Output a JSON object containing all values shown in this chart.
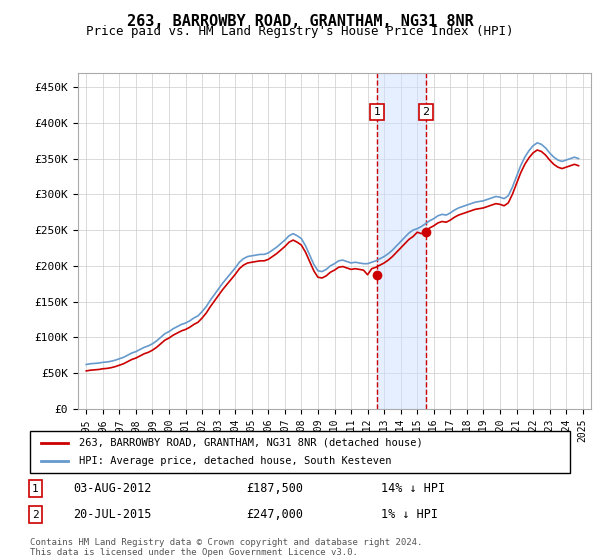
{
  "title": "263, BARROWBY ROAD, GRANTHAM, NG31 8NR",
  "subtitle": "Price paid vs. HM Land Registry's House Price Index (HPI)",
  "ylabel_ticks": [
    "£0",
    "£50K",
    "£100K",
    "£150K",
    "£200K",
    "£250K",
    "£300K",
    "£350K",
    "£400K",
    "£450K"
  ],
  "ylabel_values": [
    0,
    50000,
    100000,
    150000,
    200000,
    250000,
    300000,
    350000,
    400000,
    450000
  ],
  "ylim": [
    0,
    470000
  ],
  "xlim_start": 1994.5,
  "xlim_end": 2025.5,
  "xticks": [
    1995,
    1996,
    1997,
    1998,
    1999,
    2000,
    2001,
    2002,
    2003,
    2004,
    2005,
    2006,
    2007,
    2008,
    2009,
    2010,
    2011,
    2012,
    2013,
    2014,
    2015,
    2016,
    2017,
    2018,
    2019,
    2020,
    2021,
    2022,
    2023,
    2024,
    2025
  ],
  "hpi_color": "#6699cc",
  "price_color": "#cc0000",
  "background_color": "#ffffff",
  "grid_color": "#cccccc",
  "legend_label_red": "263, BARROWBY ROAD, GRANTHAM, NG31 8NR (detached house)",
  "legend_label_blue": "HPI: Average price, detached house, South Kesteven",
  "transaction1_date": "03-AUG-2012",
  "transaction1_price": "£187,500",
  "transaction1_hpi": "14% ↓ HPI",
  "transaction2_date": "20-JUL-2015",
  "transaction2_price": "£247,000",
  "transaction2_hpi": "1% ↓ HPI",
  "transaction1_year": 2012.58,
  "transaction2_year": 2015.54,
  "footnote": "Contains HM Land Registry data © Crown copyright and database right 2024.\nThis data is licensed under the Open Government Licence v3.0.",
  "hpi_data_x": [
    1995.0,
    1995.25,
    1995.5,
    1995.75,
    1996.0,
    1996.25,
    1996.5,
    1996.75,
    1997.0,
    1997.25,
    1997.5,
    1997.75,
    1998.0,
    1998.25,
    1998.5,
    1998.75,
    1999.0,
    1999.25,
    1999.5,
    1999.75,
    2000.0,
    2000.25,
    2000.5,
    2000.75,
    2001.0,
    2001.25,
    2001.5,
    2001.75,
    2002.0,
    2002.25,
    2002.5,
    2002.75,
    2003.0,
    2003.25,
    2003.5,
    2003.75,
    2004.0,
    2004.25,
    2004.5,
    2004.75,
    2005.0,
    2005.25,
    2005.5,
    2005.75,
    2006.0,
    2006.25,
    2006.5,
    2006.75,
    2007.0,
    2007.25,
    2007.5,
    2007.75,
    2008.0,
    2008.25,
    2008.5,
    2008.75,
    2009.0,
    2009.25,
    2009.5,
    2009.75,
    2010.0,
    2010.25,
    2010.5,
    2010.75,
    2011.0,
    2011.25,
    2011.5,
    2011.75,
    2012.0,
    2012.25,
    2012.5,
    2012.75,
    2013.0,
    2013.25,
    2013.5,
    2013.75,
    2014.0,
    2014.25,
    2014.5,
    2014.75,
    2015.0,
    2015.25,
    2015.5,
    2015.75,
    2016.0,
    2016.25,
    2016.5,
    2016.75,
    2017.0,
    2017.25,
    2017.5,
    2017.75,
    2018.0,
    2018.25,
    2018.5,
    2018.75,
    2019.0,
    2019.25,
    2019.5,
    2019.75,
    2020.0,
    2020.25,
    2020.5,
    2020.75,
    2021.0,
    2021.25,
    2021.5,
    2021.75,
    2022.0,
    2022.25,
    2022.5,
    2022.75,
    2023.0,
    2023.25,
    2023.5,
    2023.75,
    2024.0,
    2024.25,
    2024.5,
    2024.75
  ],
  "hpi_data_y": [
    62000,
    63000,
    63500,
    64000,
    65000,
    65500,
    66500,
    68000,
    70000,
    72000,
    75000,
    78000,
    80000,
    83000,
    86000,
    88000,
    91000,
    95000,
    100000,
    105000,
    108000,
    112000,
    115000,
    118000,
    120000,
    123000,
    127000,
    130000,
    136000,
    143000,
    152000,
    160000,
    168000,
    176000,
    183000,
    190000,
    197000,
    205000,
    210000,
    213000,
    214000,
    215000,
    216000,
    216000,
    218000,
    222000,
    226000,
    231000,
    236000,
    242000,
    245000,
    242000,
    238000,
    228000,
    215000,
    202000,
    193000,
    192000,
    195000,
    200000,
    203000,
    207000,
    208000,
    206000,
    204000,
    205000,
    204000,
    203000,
    203000,
    205000,
    207000,
    210000,
    213000,
    217000,
    222000,
    228000,
    234000,
    240000,
    246000,
    250000,
    252000,
    255000,
    259000,
    263000,
    266000,
    270000,
    272000,
    271000,
    274000,
    278000,
    281000,
    283000,
    285000,
    287000,
    289000,
    290000,
    291000,
    293000,
    295000,
    297000,
    296000,
    294000,
    298000,
    310000,
    325000,
    340000,
    352000,
    361000,
    368000,
    372000,
    370000,
    365000,
    358000,
    352000,
    348000,
    346000,
    348000,
    350000,
    352000,
    350000
  ],
  "price_data_x": [
    1995.0,
    1995.25,
    1995.5,
    1995.75,
    1996.0,
    1996.25,
    1996.5,
    1996.75,
    1997.0,
    1997.25,
    1997.5,
    1997.75,
    1998.0,
    1998.25,
    1998.5,
    1998.75,
    1999.0,
    1999.25,
    1999.5,
    1999.75,
    2000.0,
    2000.25,
    2000.5,
    2000.75,
    2001.0,
    2001.25,
    2001.5,
    2001.75,
    2002.0,
    2002.25,
    2002.5,
    2002.75,
    2003.0,
    2003.25,
    2003.5,
    2003.75,
    2004.0,
    2004.25,
    2004.5,
    2004.75,
    2005.0,
    2005.25,
    2005.5,
    2005.75,
    2006.0,
    2006.25,
    2006.5,
    2006.75,
    2007.0,
    2007.25,
    2007.5,
    2007.75,
    2008.0,
    2008.25,
    2008.5,
    2008.75,
    2009.0,
    2009.25,
    2009.5,
    2009.75,
    2010.0,
    2010.25,
    2010.5,
    2010.75,
    2011.0,
    2011.25,
    2011.5,
    2011.75,
    2012.0,
    2012.25,
    2012.5,
    2012.75,
    2013.0,
    2013.25,
    2013.5,
    2013.75,
    2014.0,
    2014.25,
    2014.5,
    2014.75,
    2015.0,
    2015.25,
    2015.5,
    2015.75,
    2016.0,
    2016.25,
    2016.5,
    2016.75,
    2017.0,
    2017.25,
    2017.5,
    2017.75,
    2018.0,
    2018.25,
    2018.5,
    2018.75,
    2019.0,
    2019.25,
    2019.5,
    2019.75,
    2020.0,
    2020.25,
    2020.5,
    2020.75,
    2021.0,
    2021.25,
    2021.5,
    2021.75,
    2022.0,
    2022.25,
    2022.5,
    2022.75,
    2023.0,
    2023.25,
    2023.5,
    2023.75,
    2024.0,
    2024.25,
    2024.5,
    2024.75
  ],
  "price_data_y": [
    53000,
    54000,
    54500,
    55000,
    56000,
    56500,
    57500,
    59000,
    61000,
    63000,
    66000,
    69000,
    71000,
    74000,
    77000,
    79000,
    82000,
    86000,
    91000,
    96000,
    99000,
    103000,
    106000,
    109000,
    111000,
    114000,
    118000,
    121000,
    127000,
    134000,
    143000,
    151000,
    159000,
    167000,
    174000,
    181000,
    188000,
    196000,
    201000,
    204000,
    205000,
    206000,
    207000,
    207000,
    209000,
    213000,
    217000,
    222000,
    227000,
    233000,
    236000,
    233000,
    229000,
    219000,
    206000,
    193000,
    184000,
    183000,
    186000,
    191000,
    194000,
    198000,
    199000,
    197000,
    195000,
    196000,
    195000,
    194000,
    187500,
    196000,
    198000,
    201000,
    204000,
    208000,
    213000,
    219000,
    225000,
    231000,
    237000,
    241000,
    247000,
    245000,
    249000,
    253000,
    256000,
    260000,
    262000,
    261000,
    264000,
    268000,
    271000,
    273000,
    275000,
    277000,
    279000,
    280000,
    281000,
    283000,
    285000,
    287000,
    286000,
    284000,
    288000,
    300000,
    315000,
    330000,
    342000,
    351000,
    358000,
    362000,
    360000,
    355000,
    348000,
    342000,
    338000,
    336000,
    338000,
    340000,
    342000,
    340000
  ]
}
